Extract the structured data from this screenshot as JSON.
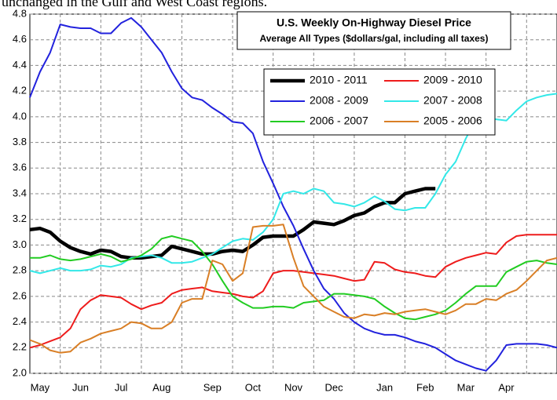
{
  "caption": "unchanged in the Gulf and West Coast regions.",
  "chart_data": {
    "type": "line",
    "title": "U.S. Weekly On-Highway Diesel Price",
    "subtitle": "Average All Types ($dollars/gal, including all taxes)",
    "categories": [
      null,
      "May",
      null,
      null,
      null,
      "Jun",
      null,
      null,
      null,
      "Jul",
      null,
      null,
      null,
      "Aug",
      null,
      null,
      null,
      null,
      "Sep",
      null,
      null,
      null,
      "Oct",
      null,
      null,
      null,
      "Nov",
      null,
      null,
      null,
      "Dec",
      null,
      null,
      null,
      null,
      "Jan",
      null,
      null,
      null,
      "Feb",
      null,
      null,
      null,
      "Mar",
      null,
      null,
      null,
      "Apr",
      null,
      null,
      null,
      null,
      null
    ],
    "ylim": [
      2.0,
      4.8
    ],
    "yticks": [
      {
        "value": 2.0,
        "label": "2.0"
      },
      2.2,
      2.4,
      2.6,
      2.8,
      {
        "value": 3.0,
        "label": "3.0"
      },
      3.2,
      3.4,
      3.6,
      3.8,
      {
        "value": 4.0,
        "label": "4.0"
      },
      4.2,
      4.4,
      4.6,
      4.8
    ],
    "grid": true,
    "series": [
      {
        "name": "2010 - 2011",
        "color": "#000000",
        "values": [
          3.12,
          3.13,
          3.1,
          3.03,
          2.98,
          2.95,
          2.93,
          2.96,
          2.95,
          2.91,
          2.9,
          2.9,
          2.91,
          2.92,
          2.99,
          2.97,
          2.95,
          2.93,
          2.93,
          2.95,
          2.96,
          2.95,
          3.0,
          3.06,
          3.07,
          3.07,
          3.07,
          3.12,
          3.18,
          3.17,
          3.16,
          3.19,
          3.23,
          3.25,
          3.3,
          3.33,
          3.33,
          3.4,
          3.42,
          3.44,
          3.44,
          null,
          null,
          null,
          null,
          null,
          null,
          null,
          null,
          null,
          null,
          null,
          null
        ]
      },
      {
        "name": "2009 - 2010",
        "color": "#ee1c1c",
        "values": [
          2.2,
          2.22,
          2.25,
          2.28,
          2.35,
          2.5,
          2.57,
          2.61,
          2.6,
          2.59,
          2.54,
          2.5,
          2.53,
          2.55,
          2.62,
          2.65,
          2.66,
          2.67,
          2.64,
          2.63,
          2.62,
          2.6,
          2.59,
          2.64,
          2.78,
          2.8,
          2.8,
          2.79,
          2.78,
          2.77,
          2.76,
          2.74,
          2.72,
          2.73,
          2.87,
          2.86,
          2.81,
          2.79,
          2.78,
          2.76,
          2.75,
          2.83,
          2.87,
          2.9,
          2.92,
          2.94,
          2.93,
          3.02,
          3.07,
          3.08,
          3.08,
          3.08,
          3.08
        ]
      },
      {
        "name": "2008 - 2009",
        "color": "#2222dd",
        "values": [
          4.15,
          4.35,
          4.5,
          4.72,
          4.7,
          4.69,
          4.69,
          4.65,
          4.65,
          4.73,
          4.77,
          4.7,
          4.6,
          4.5,
          4.35,
          4.22,
          4.15,
          4.13,
          4.07,
          4.02,
          3.96,
          3.95,
          3.87,
          3.65,
          3.48,
          3.3,
          3.15,
          2.97,
          2.8,
          2.66,
          2.58,
          2.47,
          2.4,
          2.35,
          2.32,
          2.3,
          2.3,
          2.28,
          2.25,
          2.23,
          2.2,
          2.15,
          2.1,
          2.07,
          2.04,
          2.02,
          2.1,
          2.22,
          2.23,
          2.23,
          2.23,
          2.22,
          2.2
        ]
      },
      {
        "name": "2007 - 2008",
        "color": "#33e8e8",
        "values": [
          2.8,
          2.78,
          2.8,
          2.82,
          2.8,
          2.8,
          2.81,
          2.84,
          2.83,
          2.85,
          2.9,
          2.91,
          2.92,
          2.9,
          2.86,
          2.86,
          2.87,
          2.9,
          2.93,
          2.98,
          3.03,
          3.05,
          3.04,
          3.1,
          3.2,
          3.4,
          3.42,
          3.4,
          3.44,
          3.42,
          3.33,
          3.32,
          3.3,
          3.33,
          3.38,
          3.34,
          3.28,
          3.27,
          3.29,
          3.29,
          3.4,
          3.55,
          3.65,
          3.83,
          3.98,
          3.99,
          3.98,
          3.97,
          4.05,
          4.12,
          4.15,
          4.17,
          4.18
        ]
      },
      {
        "name": "2006 - 2007",
        "color": "#22cc22",
        "values": [
          2.9,
          2.9,
          2.92,
          2.89,
          2.88,
          2.89,
          2.91,
          2.93,
          2.91,
          2.87,
          2.89,
          2.92,
          2.97,
          3.05,
          3.07,
          3.05,
          3.03,
          2.95,
          2.85,
          2.72,
          2.6,
          2.55,
          2.51,
          2.51,
          2.52,
          2.52,
          2.51,
          2.55,
          2.56,
          2.57,
          2.62,
          2.62,
          2.61,
          2.6,
          2.58,
          2.52,
          2.47,
          2.43,
          2.42,
          2.44,
          2.46,
          2.49,
          2.55,
          2.62,
          2.68,
          2.68,
          2.68,
          2.79,
          2.83,
          2.87,
          2.88,
          2.86,
          2.85
        ]
      },
      {
        "name": "2005 - 2006",
        "color": "#d97f26",
        "values": [
          2.26,
          2.23,
          2.18,
          2.16,
          2.17,
          2.24,
          2.27,
          2.31,
          2.33,
          2.35,
          2.4,
          2.39,
          2.35,
          2.35,
          2.4,
          2.55,
          2.58,
          2.58,
          2.88,
          2.85,
          2.72,
          2.78,
          3.14,
          3.15,
          3.15,
          3.16,
          2.9,
          2.68,
          2.6,
          2.52,
          2.48,
          2.44,
          2.43,
          2.46,
          2.45,
          2.47,
          2.46,
          2.48,
          2.49,
          2.5,
          2.48,
          2.46,
          2.49,
          2.54,
          2.54,
          2.58,
          2.57,
          2.62,
          2.65,
          2.72,
          2.8,
          2.88,
          2.9
        ]
      }
    ]
  }
}
